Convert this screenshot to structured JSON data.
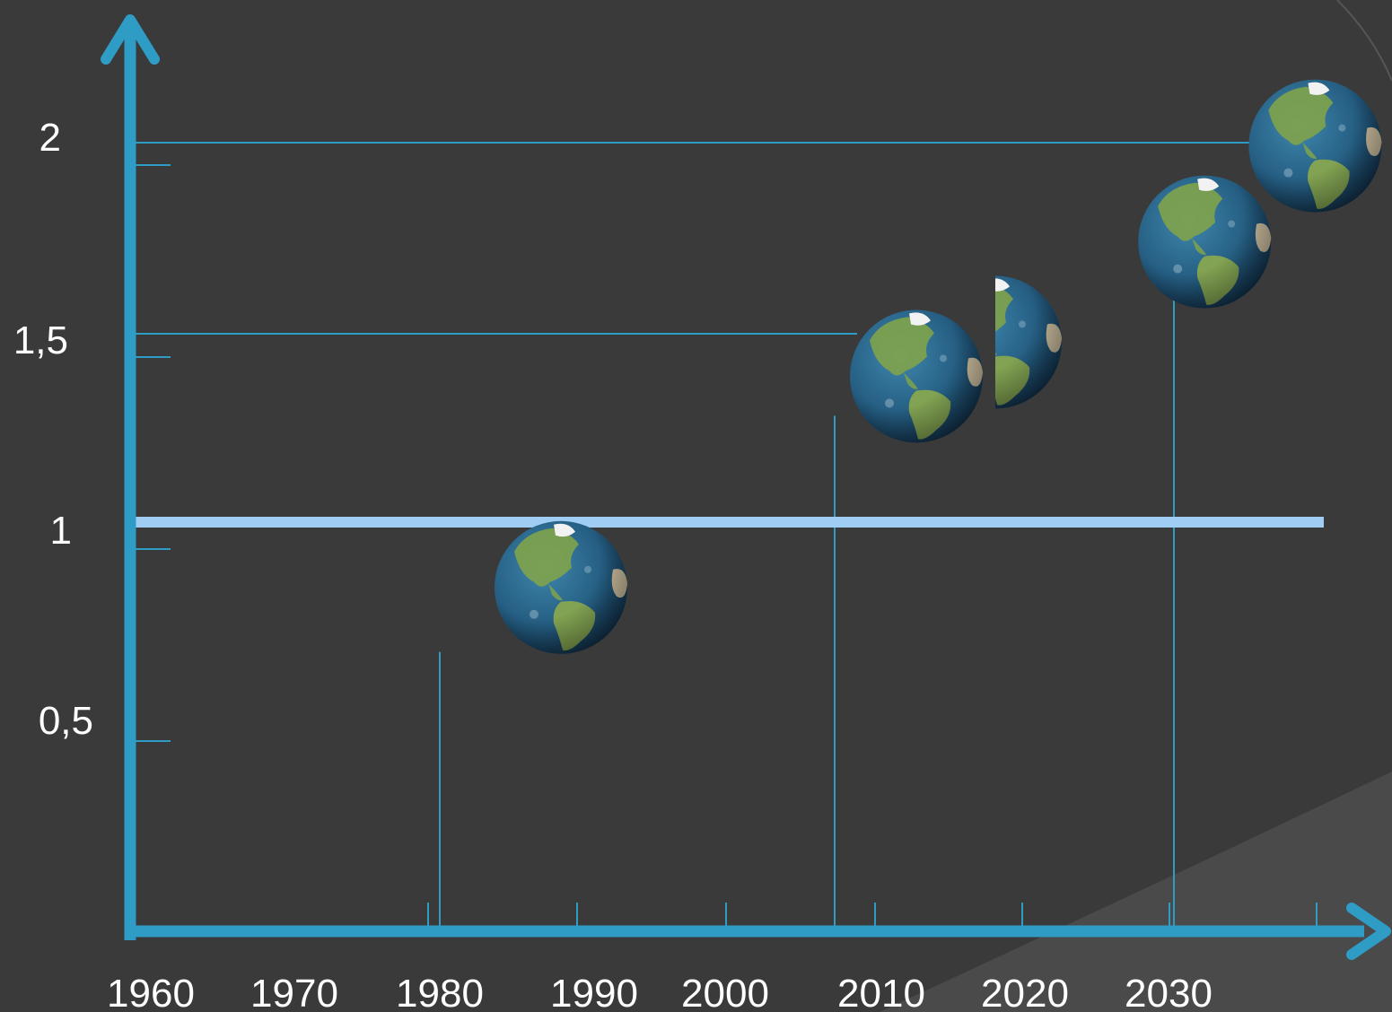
{
  "chart_data": {
    "type": "scatter",
    "title": "",
    "xlabel": "",
    "ylabel": "",
    "x_ticks": [
      1960,
      1970,
      1980,
      1990,
      2000,
      2010,
      2020,
      2030
    ],
    "x_tick_labels": [
      "1960",
      "1970",
      "1980",
      "1990",
      "2000",
      "2010",
      "2020",
      "2030"
    ],
    "y_ticks": [
      0.5,
      1,
      1.5,
      2
    ],
    "y_tick_labels": [
      "0,5",
      "1",
      "1,5",
      "2"
    ],
    "xlim": [
      1950,
      2040
    ],
    "ylim": [
      0,
      2.2
    ],
    "grid": false,
    "reference_line": {
      "y": 1,
      "color": "#9fcdf4"
    },
    "points": [
      {
        "x": 1980,
        "y": 0.9,
        "marker": "earth-globe",
        "count": 1,
        "guide": "vertical"
      },
      {
        "x": 2005,
        "y": 1.45,
        "marker": "earth-globe",
        "count": 1.5,
        "guide": "both"
      },
      {
        "x": 2023,
        "y": 1.8,
        "marker": "earth-globe",
        "count": 1,
        "guide": "none"
      },
      {
        "x": 2031,
        "y": 2.05,
        "marker": "earth-globe",
        "count": 1,
        "guide": "both"
      }
    ],
    "colors": {
      "background": "#3a3a3a",
      "background_corner": "#4d4d4d",
      "axis": "#2f9cc5",
      "guide": "#2f9cc5",
      "tick_label": "#ffffff",
      "ocean": "#2a5f82",
      "land": "#7fa34a",
      "ice": "#f2f2f2"
    }
  }
}
